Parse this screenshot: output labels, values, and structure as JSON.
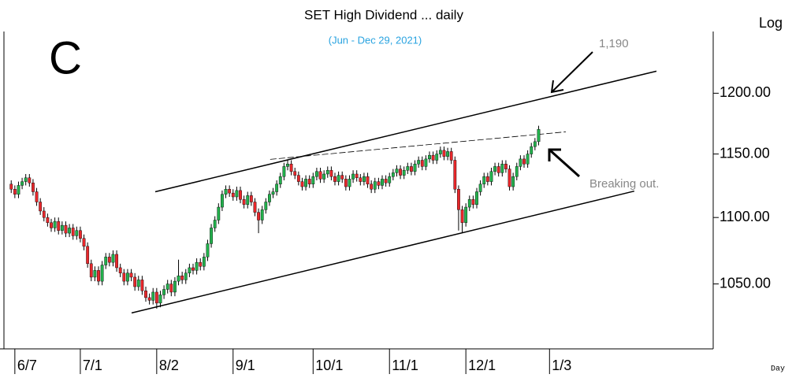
{
  "chart_data": {
    "type": "candlestick",
    "title": "SET High Dividend ... daily",
    "subtitle": "(Jun - Dec 29, 2021)",
    "y_axis_label": "Log",
    "x_axis_label": "Day",
    "annotations": [
      "C",
      "1,190",
      "Breaking out."
    ],
    "log_scale": true,
    "up_color": "#22b14c",
    "down_color": "#e8272b",
    "xlim": [
      -3,
      192
    ],
    "xticks": [
      {
        "value": 0,
        "label": "6/7"
      },
      {
        "value": 18,
        "label": "7/1"
      },
      {
        "value": 39,
        "label": "8/2"
      },
      {
        "value": 60,
        "label": "9/1"
      },
      {
        "value": 82,
        "label": "10/1"
      },
      {
        "value": 103,
        "label": "11/1"
      },
      {
        "value": 124,
        "label": "12/1"
      },
      {
        "value": 147,
        "label": "1/3"
      }
    ],
    "ylim": [
      1005,
      1253
    ],
    "yticks": [
      {
        "value": 1050,
        "label": "1050.00"
      },
      {
        "value": 1100,
        "label": "1100.00"
      },
      {
        "value": 1150,
        "label": "1150.00"
      },
      {
        "value": 1200,
        "label": "1200.00"
      }
    ],
    "trendlines": [
      {
        "x": [
          38.6,
          176.4
        ],
        "y": [
          1120,
          1218.7
        ],
        "dashed": false
      },
      {
        "x": [
          32.1,
          170.3
        ],
        "y": [
          1028.9,
          1120.5
        ],
        "dashed": false
      },
      {
        "x": [
          70.2,
          151.5
        ],
        "y": [
          1145.7,
          1168
        ],
        "dashed": true
      }
    ],
    "x": [
      -1,
      0,
      1,
      2,
      3,
      4,
      5,
      6,
      7,
      8,
      9,
      10,
      11,
      12,
      13,
      14,
      15,
      16,
      17,
      18,
      19,
      20,
      21,
      22,
      23,
      24,
      25,
      26,
      27,
      28,
      29,
      30,
      31,
      32,
      33,
      34,
      35,
      36,
      37,
      38,
      39,
      40,
      41,
      42,
      43,
      44,
      45,
      46,
      47,
      48,
      49,
      50,
      51,
      52,
      53,
      54,
      55,
      56,
      57,
      58,
      59,
      60,
      61,
      62,
      63,
      64,
      65,
      66,
      67,
      68,
      69,
      70,
      71,
      72,
      73,
      74,
      75,
      76,
      77,
      78,
      79,
      80,
      81,
      82,
      83,
      84,
      85,
      86,
      87,
      88,
      89,
      90,
      91,
      92,
      93,
      94,
      95,
      96,
      97,
      98,
      99,
      100,
      101,
      102,
      103,
      104,
      105,
      106,
      107,
      108,
      109,
      110,
      111,
      112,
      113,
      114,
      115,
      116,
      117,
      118,
      119,
      120,
      121,
      122,
      123,
      124,
      125,
      126,
      127,
      128,
      129,
      130,
      131,
      132,
      133,
      134,
      135,
      136,
      137,
      138,
      139,
      140,
      141,
      142,
      143,
      144
    ],
    "open": [
      1126,
      1122,
      1118,
      1125,
      1128,
      1131,
      1127,
      1120,
      1112,
      1105,
      1100,
      1096,
      1092,
      1097,
      1090,
      1094,
      1088,
      1092,
      1086,
      1090,
      1084,
      1078,
      1065,
      1055,
      1060,
      1052,
      1064,
      1070,
      1066,
      1072,
      1062,
      1058,
      1052,
      1058,
      1055,
      1048,
      1053,
      1045,
      1040,
      1038,
      1044,
      1036,
      1042,
      1046,
      1050,
      1044,
      1052,
      1056,
      1053,
      1058,
      1062,
      1060,
      1066,
      1063,
      1070,
      1080,
      1092,
      1098,
      1108,
      1118,
      1122,
      1119,
      1116,
      1121,
      1114,
      1110,
      1117,
      1112,
      1104,
      1098,
      1106,
      1112,
      1118,
      1120,
      1126,
      1132,
      1140,
      1142,
      1136,
      1133,
      1128,
      1124,
      1130,
      1126,
      1132,
      1136,
      1130,
      1134,
      1137,
      1132,
      1128,
      1133,
      1130,
      1124,
      1130,
      1134,
      1131,
      1128,
      1132,
      1126,
      1122,
      1128,
      1125,
      1130,
      1127,
      1132,
      1135,
      1138,
      1133,
      1137,
      1140,
      1136,
      1142,
      1145,
      1140,
      1146,
      1149,
      1145,
      1150,
      1153,
      1148,
      1152,
      1145,
      1122,
      1106,
      1096,
      1108,
      1114,
      1110,
      1120,
      1126,
      1132,
      1128,
      1136,
      1140,
      1135,
      1142,
      1138,
      1124,
      1132,
      1140,
      1146,
      1142,
      1150,
      1156,
      1160
    ],
    "high": [
      1129,
      1125,
      1128,
      1131,
      1134,
      1134,
      1130,
      1123,
      1115,
      1108,
      1103,
      1099,
      1100,
      1100,
      1097,
      1097,
      1095,
      1095,
      1093,
      1093,
      1087,
      1081,
      1068,
      1063,
      1063,
      1067,
      1073,
      1073,
      1075,
      1075,
      1065,
      1061,
      1061,
      1061,
      1058,
      1056,
      1056,
      1048,
      1043,
      1047,
      1047,
      1045,
      1049,
      1053,
      1053,
      1055,
      1068,
      1059,
      1061,
      1065,
      1065,
      1069,
      1069,
      1073,
      1083,
      1095,
      1101,
      1111,
      1121,
      1125,
      1125,
      1122,
      1124,
      1124,
      1117,
      1120,
      1120,
      1115,
      1107,
      1109,
      1115,
      1121,
      1123,
      1129,
      1135,
      1143,
      1145,
      1145,
      1139,
      1136,
      1131,
      1133,
      1133,
      1135,
      1139,
      1139,
      1137,
      1140,
      1140,
      1135,
      1136,
      1136,
      1133,
      1133,
      1137,
      1137,
      1134,
      1135,
      1135,
      1129,
      1131,
      1131,
      1133,
      1133,
      1135,
      1138,
      1141,
      1141,
      1140,
      1143,
      1143,
      1145,
      1148,
      1148,
      1149,
      1152,
      1152,
      1153,
      1156,
      1156,
      1155,
      1155,
      1148,
      1125,
      1109,
      1111,
      1117,
      1117,
      1123,
      1129,
      1135,
      1135,
      1139,
      1143,
      1143,
      1145,
      1145,
      1141,
      1135,
      1143,
      1149,
      1149,
      1153,
      1159,
      1163,
      1173
    ],
    "low": [
      1119,
      1115,
      1115,
      1122,
      1125,
      1124,
      1117,
      1109,
      1102,
      1097,
      1093,
      1089,
      1089,
      1087,
      1087,
      1085,
      1085,
      1083,
      1083,
      1081,
      1075,
      1062,
      1052,
      1052,
      1049,
      1049,
      1061,
      1063,
      1063,
      1059,
      1055,
      1049,
      1049,
      1052,
      1045,
      1045,
      1042,
      1037,
      1035,
      1035,
      1032,
      1033,
      1039,
      1043,
      1041,
      1041,
      1049,
      1050,
      1050,
      1055,
      1057,
      1057,
      1060,
      1060,
      1067,
      1077,
      1089,
      1095,
      1105,
      1115,
      1116,
      1113,
      1113,
      1111,
      1107,
      1107,
      1109,
      1101,
      1088,
      1095,
      1103,
      1109,
      1115,
      1117,
      1123,
      1129,
      1137,
      1133,
      1130,
      1125,
      1121,
      1121,
      1123,
      1123,
      1129,
      1127,
      1127,
      1131,
      1129,
      1125,
      1125,
      1127,
      1121,
      1121,
      1127,
      1128,
      1125,
      1125,
      1123,
      1119,
      1119,
      1122,
      1122,
      1124,
      1124,
      1129,
      1132,
      1130,
      1130,
      1134,
      1133,
      1133,
      1139,
      1137,
      1137,
      1143,
      1142,
      1142,
      1147,
      1145,
      1145,
      1142,
      1119,
      1090,
      1088,
      1093,
      1105,
      1107,
      1107,
      1117,
      1123,
      1125,
      1125,
      1133,
      1132,
      1132,
      1135,
      1121,
      1121,
      1129,
      1137,
      1139,
      1139,
      1147,
      1153,
      1157
    ],
    "close": [
      1122,
      1118,
      1125,
      1128,
      1131,
      1127,
      1120,
      1112,
      1105,
      1100,
      1096,
      1092,
      1097,
      1090,
      1094,
      1088,
      1092,
      1086,
      1090,
      1084,
      1078,
      1065,
      1055,
      1060,
      1052,
      1064,
      1070,
      1066,
      1072,
      1062,
      1058,
      1052,
      1058,
      1055,
      1048,
      1053,
      1045,
      1040,
      1038,
      1044,
      1036,
      1042,
      1046,
      1050,
      1044,
      1052,
      1056,
      1053,
      1058,
      1062,
      1060,
      1066,
      1063,
      1070,
      1080,
      1092,
      1098,
      1108,
      1118,
      1122,
      1119,
      1116,
      1121,
      1114,
      1110,
      1117,
      1112,
      1104,
      1098,
      1106,
      1112,
      1118,
      1120,
      1126,
      1132,
      1140,
      1142,
      1136,
      1133,
      1128,
      1124,
      1130,
      1126,
      1132,
      1136,
      1130,
      1134,
      1137,
      1132,
      1128,
      1133,
      1130,
      1124,
      1130,
      1134,
      1131,
      1128,
      1132,
      1126,
      1122,
      1128,
      1125,
      1130,
      1127,
      1132,
      1135,
      1138,
      1133,
      1137,
      1140,
      1136,
      1142,
      1145,
      1140,
      1146,
      1149,
      1145,
      1150,
      1153,
      1148,
      1152,
      1145,
      1122,
      1106,
      1096,
      1108,
      1114,
      1110,
      1120,
      1126,
      1132,
      1128,
      1136,
      1140,
      1135,
      1142,
      1138,
      1124,
      1132,
      1140,
      1146,
      1142,
      1150,
      1156,
      1160,
      1170
    ]
  }
}
